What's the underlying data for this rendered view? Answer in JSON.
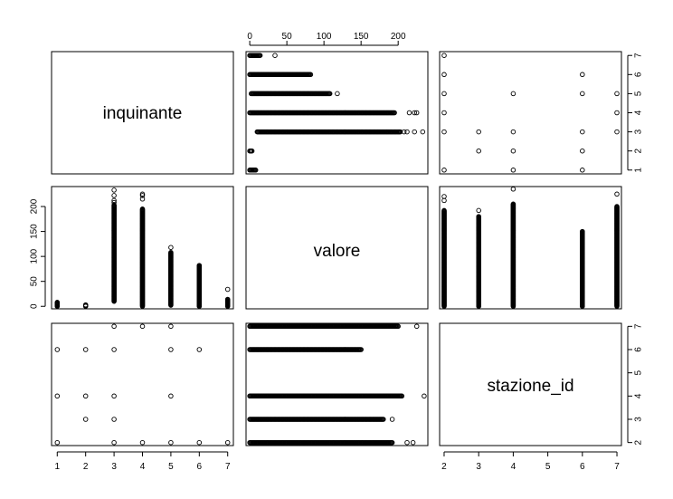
{
  "chart_data": {
    "type": "scatter",
    "kind": "pairs",
    "variables": [
      "inquinante",
      "valore",
      "stazione_id"
    ],
    "axes": {
      "inquinante": {
        "ticks": [
          1,
          2,
          3,
          4,
          5,
          6,
          7
        ],
        "range": [
          0.8,
          7.2
        ]
      },
      "valore": {
        "ticks": [
          0,
          50,
          100,
          150,
          200
        ],
        "range": [
          -5,
          240
        ]
      },
      "stazione_id": {
        "ticks": [
          2,
          3,
          4,
          5,
          6,
          7
        ],
        "range": [
          1.87,
          7.13
        ]
      }
    },
    "valore_by_inquinante": [
      {
        "inquinante": 1,
        "range": [
          0,
          8
        ],
        "outliers": []
      },
      {
        "inquinante": 2,
        "range": [
          0,
          3
        ],
        "outliers": []
      },
      {
        "inquinante": 3,
        "range": [
          10,
          203
        ],
        "outliers": [
          208,
          212,
          222,
          233
        ]
      },
      {
        "inquinante": 4,
        "range": [
          0,
          195
        ],
        "outliers": [
          215,
          222,
          225
        ]
      },
      {
        "inquinante": 5,
        "range": [
          2,
          108
        ],
        "outliers": [
          118
        ]
      },
      {
        "inquinante": 6,
        "range": [
          0,
          82
        ],
        "outliers": []
      },
      {
        "inquinante": 7,
        "range": [
          0,
          14
        ],
        "outliers": [
          34
        ]
      }
    ],
    "valore_by_stazione": [
      {
        "stazione_id": 2,
        "range": [
          0,
          192
        ],
        "outliers": [
          212,
          220
        ]
      },
      {
        "stazione_id": 3,
        "range": [
          0,
          180
        ],
        "outliers": [
          192
        ]
      },
      {
        "stazione_id": 4,
        "range": [
          0,
          205
        ],
        "outliers": [
          235
        ]
      },
      {
        "stazione_id": 6,
        "range": [
          0,
          150
        ],
        "outliers": []
      },
      {
        "stazione_id": 7,
        "range": [
          0,
          200
        ],
        "outliers": [
          225
        ]
      }
    ],
    "inquinante_stazione_pairs": [
      [
        1,
        2
      ],
      [
        1,
        4
      ],
      [
        1,
        6
      ],
      [
        2,
        3
      ],
      [
        2,
        4
      ],
      [
        2,
        6
      ],
      [
        3,
        2
      ],
      [
        3,
        3
      ],
      [
        3,
        4
      ],
      [
        3,
        6
      ],
      [
        3,
        7
      ],
      [
        4,
        2
      ],
      [
        4,
        7
      ],
      [
        5,
        2
      ],
      [
        5,
        4
      ],
      [
        5,
        6
      ],
      [
        5,
        7
      ],
      [
        6,
        2
      ],
      [
        6,
        6
      ],
      [
        7,
        2
      ]
    ]
  }
}
